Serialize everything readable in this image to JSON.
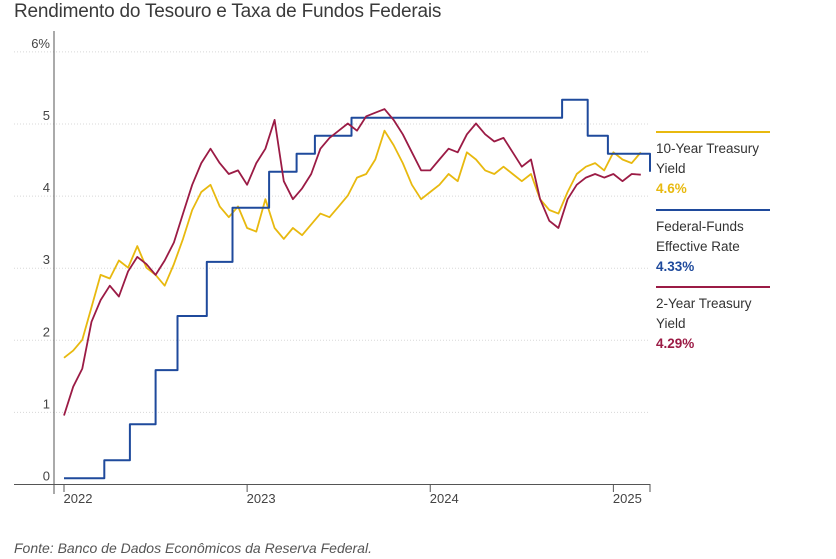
{
  "chart_data": {
    "type": "line",
    "title": "Rendimento do Tesouro e Taxa de Fundos Federais",
    "source": "Fonte: Banco de Dados Econômicos da Reserva Federal.",
    "ylim": [
      0,
      6
    ],
    "yticks": [
      "0",
      "1",
      "2",
      "3",
      "4",
      "5",
      "6%"
    ],
    "xlim": [
      2022.0,
      2025.2
    ],
    "xticks": [
      {
        "label": "2022",
        "x": 2022.0
      },
      {
        "label": "2023",
        "x": 2023.0
      },
      {
        "label": "2024",
        "x": 2024.0
      },
      {
        "label": "2025",
        "x": 2025.0
      }
    ],
    "grid": true,
    "legend_position": "right",
    "series": [
      {
        "name": "10-Year Treasury Yield",
        "name_lines": [
          "10-Year Treasury",
          "Yield"
        ],
        "value_label": "4.6%",
        "color": "#e8b90f",
        "x": [
          2022.0,
          2022.05,
          2022.1,
          2022.15,
          2022.2,
          2022.25,
          2022.3,
          2022.35,
          2022.4,
          2022.45,
          2022.5,
          2022.55,
          2022.6,
          2022.65,
          2022.7,
          2022.75,
          2022.8,
          2022.85,
          2022.9,
          2022.95,
          2023.0,
          2023.05,
          2023.1,
          2023.15,
          2023.2,
          2023.25,
          2023.3,
          2023.35,
          2023.4,
          2023.45,
          2023.5,
          2023.55,
          2023.6,
          2023.65,
          2023.7,
          2023.75,
          2023.8,
          2023.85,
          2023.9,
          2023.95,
          2024.0,
          2024.05,
          2024.1,
          2024.15,
          2024.2,
          2024.25,
          2024.3,
          2024.35,
          2024.4,
          2024.45,
          2024.5,
          2024.55,
          2024.6,
          2024.65,
          2024.7,
          2024.75,
          2024.8,
          2024.85,
          2024.9,
          2024.95,
          2025.0,
          2025.05,
          2025.1,
          2025.15
        ],
        "y": [
          1.75,
          1.85,
          2.0,
          2.45,
          2.9,
          2.85,
          3.1,
          3.0,
          3.3,
          3.0,
          2.9,
          2.75,
          3.05,
          3.4,
          3.8,
          4.05,
          4.15,
          3.85,
          3.7,
          3.85,
          3.55,
          3.5,
          3.95,
          3.55,
          3.4,
          3.55,
          3.45,
          3.6,
          3.75,
          3.7,
          3.85,
          4.0,
          4.25,
          4.3,
          4.5,
          4.9,
          4.7,
          4.45,
          4.15,
          3.95,
          4.05,
          4.15,
          4.3,
          4.2,
          4.6,
          4.5,
          4.35,
          4.3,
          4.4,
          4.3,
          4.2,
          4.3,
          3.95,
          3.8,
          3.75,
          4.05,
          4.3,
          4.4,
          4.45,
          4.35,
          4.6,
          4.5,
          4.45,
          4.6
        ]
      },
      {
        "name": "Federal-Funds Effective Rate",
        "name_lines": [
          "Federal-Funds",
          "Effective Rate"
        ],
        "value_label": "4.33%",
        "color": "#1f4a9c",
        "step": true,
        "x": [
          2022.0,
          2022.22,
          2022.36,
          2022.5,
          2022.62,
          2022.78,
          2022.92,
          2023.12,
          2023.27,
          2023.37,
          2023.57,
          2024.72,
          2024.86,
          2024.97,
          2025.2
        ],
        "y": [
          0.08,
          0.33,
          0.83,
          1.58,
          2.33,
          3.08,
          3.83,
          4.33,
          4.58,
          4.83,
          5.08,
          5.33,
          4.83,
          4.58,
          4.33
        ]
      },
      {
        "name": "2-Year Treasury Yield",
        "name_lines": [
          "2-Year Treasury",
          "Yield"
        ],
        "value_label": "4.29%",
        "color": "#9b1b45",
        "x": [
          2022.0,
          2022.05,
          2022.1,
          2022.15,
          2022.2,
          2022.25,
          2022.3,
          2022.35,
          2022.4,
          2022.45,
          2022.5,
          2022.55,
          2022.6,
          2022.65,
          2022.7,
          2022.75,
          2022.8,
          2022.85,
          2022.9,
          2022.95,
          2023.0,
          2023.05,
          2023.1,
          2023.15,
          2023.2,
          2023.25,
          2023.3,
          2023.35,
          2023.4,
          2023.45,
          2023.5,
          2023.55,
          2023.6,
          2023.65,
          2023.7,
          2023.75,
          2023.8,
          2023.85,
          2023.9,
          2023.95,
          2024.0,
          2024.05,
          2024.1,
          2024.15,
          2024.2,
          2024.25,
          2024.3,
          2024.35,
          2024.4,
          2024.45,
          2024.5,
          2024.55,
          2024.6,
          2024.65,
          2024.7,
          2024.75,
          2024.8,
          2024.85,
          2024.9,
          2024.95,
          2025.0,
          2025.05,
          2025.1,
          2025.15
        ],
        "y": [
          0.95,
          1.35,
          1.6,
          2.25,
          2.55,
          2.75,
          2.6,
          2.95,
          3.15,
          3.05,
          2.9,
          3.1,
          3.35,
          3.75,
          4.15,
          4.45,
          4.65,
          4.45,
          4.3,
          4.35,
          4.15,
          4.45,
          4.65,
          5.05,
          4.2,
          3.95,
          4.1,
          4.3,
          4.65,
          4.8,
          4.9,
          5.0,
          4.9,
          5.1,
          5.15,
          5.2,
          5.05,
          4.85,
          4.6,
          4.35,
          4.35,
          4.5,
          4.65,
          4.6,
          4.85,
          5.0,
          4.85,
          4.75,
          4.8,
          4.6,
          4.4,
          4.5,
          3.95,
          3.65,
          3.55,
          3.95,
          4.15,
          4.25,
          4.3,
          4.25,
          4.3,
          4.2,
          4.3,
          4.29
        ]
      }
    ]
  }
}
